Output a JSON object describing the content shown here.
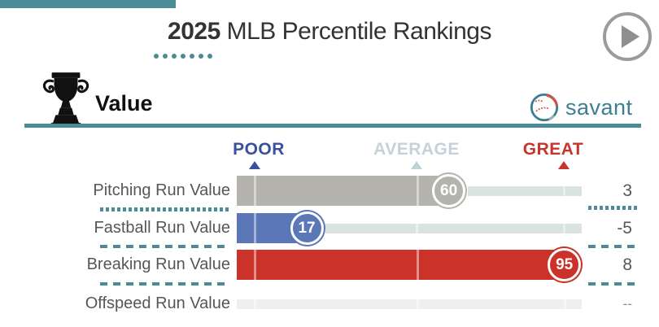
{
  "accent": {
    "teal": "#4b8b96",
    "poor_blue": "#3a4f9f",
    "average_pale": "#c3d3d9",
    "great_red": "#c8342b",
    "track": "#d9e4e2",
    "empty_track": "#edf0ef"
  },
  "header": {
    "title_year": "2025",
    "title_rest": " MLB Percentile Rankings",
    "dot_count": 7
  },
  "section": {
    "title": "Value",
    "brand": "savant"
  },
  "scale": {
    "poor": "POOR",
    "average": "AVERAGE",
    "great": "GREAT"
  },
  "rows": [
    {
      "label": "Pitching Run Value",
      "percentile": 60,
      "value": "3",
      "color": "#b5b3ae"
    },
    {
      "label": "Fastball Run Value",
      "percentile": 17,
      "value": "-5",
      "color": "#5b77b8"
    },
    {
      "label": "Breaking Run Value",
      "percentile": 95,
      "value": "8",
      "color": "#cb322a"
    },
    {
      "label": "Offspeed Run Value",
      "percentile": null,
      "value": "--",
      "color": null
    }
  ],
  "chart_data": {
    "type": "bar",
    "title": "2025 MLB Percentile Rankings",
    "subtitle": "Value",
    "categories": [
      "Pitching Run Value",
      "Fastball Run Value",
      "Breaking Run Value",
      "Offspeed Run Value"
    ],
    "series": [
      {
        "name": "Percentile",
        "values": [
          60,
          17,
          95,
          null
        ]
      },
      {
        "name": "Run Value",
        "values": [
          "3",
          "-5",
          "8",
          "--"
        ]
      }
    ],
    "xlim": [
      0,
      100
    ],
    "axis_markers": [
      "POOR",
      "AVERAGE",
      "GREAT"
    ],
    "axis_marker_percentiles": [
      1,
      50,
      95
    ],
    "bar_colors": [
      "#b5b3ae",
      "#5b77b8",
      "#cb322a",
      null
    ],
    "legend_position": "top",
    "grid": false
  }
}
